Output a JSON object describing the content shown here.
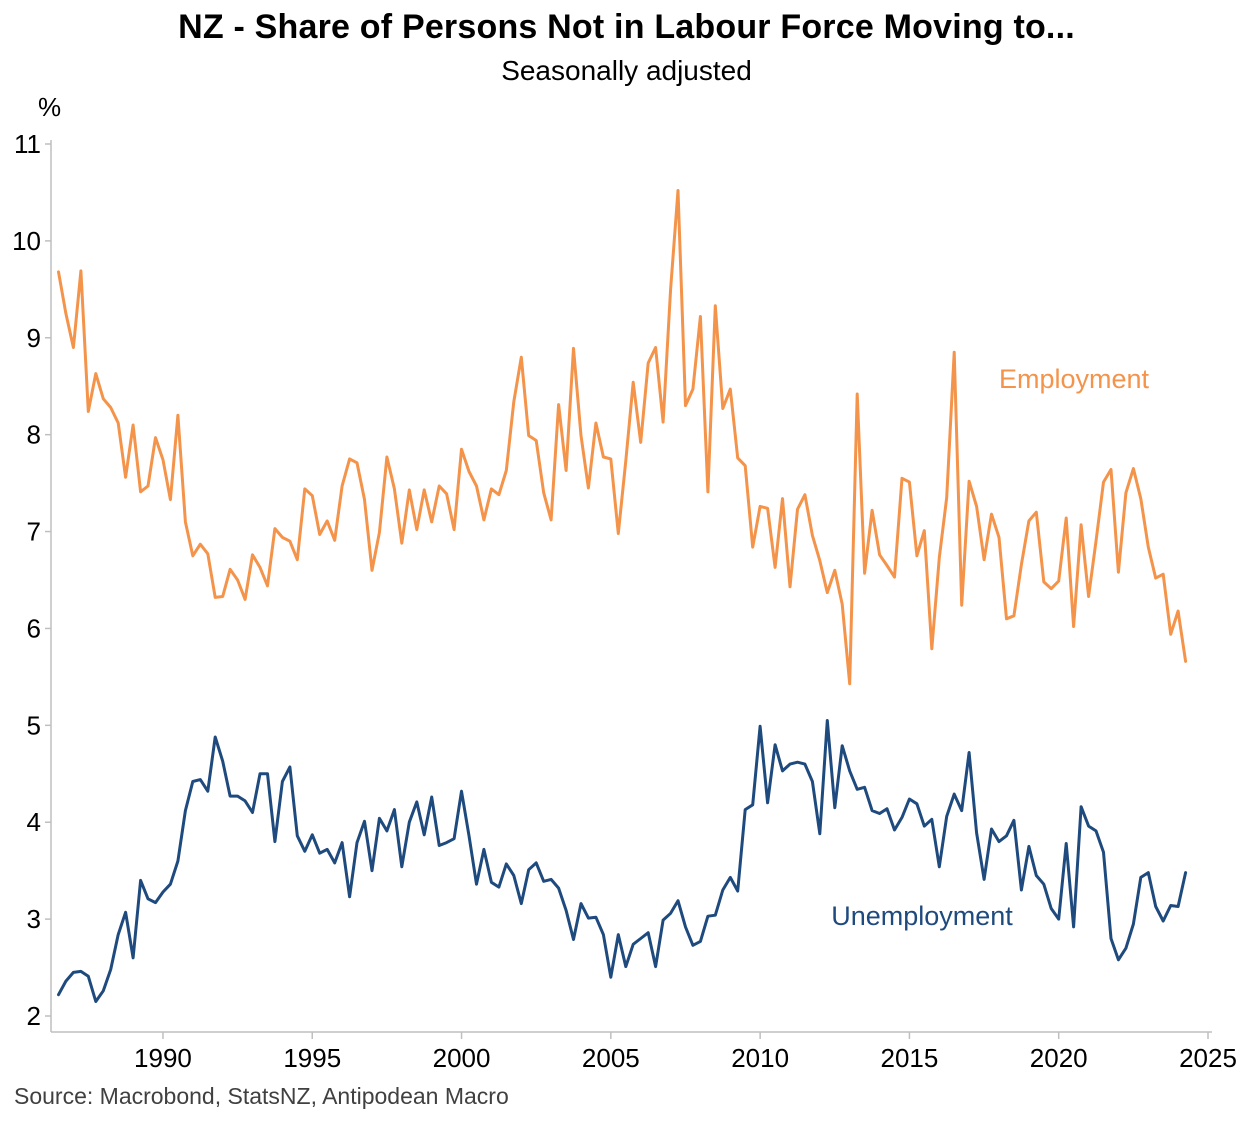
{
  "chart_data": {
    "type": "line",
    "title": "NZ - Share of Persons Not in Labour Force Moving to...",
    "subtitle": "Seasonally adjusted",
    "ylabel": "%",
    "source": "Source: Macrobond, StatsNZ, Antipodean Macro",
    "xlim": [
      1986.25,
      2025.0
    ],
    "ylim": [
      2,
      11
    ],
    "x_ticks": [
      1990,
      1995,
      2000,
      2005,
      2010,
      2015,
      2020,
      2025
    ],
    "y_ticks": [
      2,
      3,
      4,
      5,
      6,
      7,
      8,
      9,
      10,
      11
    ],
    "grid": false,
    "legend": "inline-labels",
    "x_start": 1986.5,
    "x_step": 0.25,
    "series": [
      {
        "name": "Employment",
        "color": "#F4934A",
        "values": [
          9.68,
          9.25,
          8.9,
          9.69,
          8.24,
          8.63,
          8.37,
          8.28,
          8.12,
          7.56,
          8.1,
          7.41,
          7.47,
          7.97,
          7.74,
          7.33,
          8.2,
          7.1,
          6.75,
          6.87,
          6.77,
          6.32,
          6.33,
          6.61,
          6.5,
          6.3,
          6.76,
          6.63,
          6.44,
          7.03,
          6.94,
          6.9,
          6.71,
          7.44,
          7.37,
          6.97,
          7.11,
          6.91,
          7.47,
          7.75,
          7.71,
          7.33,
          6.6,
          6.99,
          7.77,
          7.44,
          6.88,
          7.43,
          7.02,
          7.43,
          7.1,
          7.47,
          7.39,
          7.02,
          7.85,
          7.62,
          7.47,
          7.12,
          7.44,
          7.38,
          7.63,
          8.34,
          8.8,
          7.99,
          7.94,
          7.4,
          7.12,
          8.31,
          7.63,
          8.89,
          7.99,
          7.45,
          8.12,
          7.77,
          7.75,
          6.98,
          7.73,
          8.54,
          7.92,
          8.74,
          8.9,
          8.13,
          9.5,
          10.52,
          8.3,
          8.47,
          9.22,
          7.41,
          9.33,
          8.27,
          8.47,
          7.76,
          7.68,
          6.84,
          7.26,
          7.24,
          6.63,
          7.34,
          6.43,
          7.23,
          7.38,
          6.96,
          6.7,
          6.37,
          6.6,
          6.25,
          5.43,
          8.42,
          6.57,
          7.22,
          6.76,
          6.65,
          6.53,
          7.55,
          7.51,
          6.75,
          7.01,
          5.79,
          6.73,
          7.35,
          8.85,
          6.24,
          7.52,
          7.26,
          6.71,
          7.18,
          6.94,
          6.1,
          6.13,
          6.66,
          7.11,
          7.2,
          6.48,
          6.41,
          6.49,
          7.14,
          6.02,
          7.07,
          6.33,
          6.9,
          7.51,
          7.64,
          6.58,
          7.4,
          7.65,
          7.34,
          6.84,
          6.52,
          6.56,
          5.94,
          6.18,
          5.66
        ]
      },
      {
        "name": "Unemployment",
        "color": "#1F4A7E",
        "values": [
          2.22,
          2.36,
          2.45,
          2.46,
          2.41,
          2.15,
          2.26,
          2.48,
          2.84,
          3.07,
          2.6,
          3.4,
          3.21,
          3.17,
          3.28,
          3.36,
          3.6,
          4.12,
          4.42,
          4.44,
          4.32,
          4.88,
          4.63,
          4.27,
          4.27,
          4.22,
          4.1,
          4.5,
          4.5,
          3.8,
          4.42,
          4.57,
          3.86,
          3.7,
          3.87,
          3.68,
          3.72,
          3.58,
          3.79,
          3.23,
          3.79,
          4.01,
          3.5,
          4.04,
          3.91,
          4.13,
          3.54,
          4.0,
          4.21,
          3.87,
          4.26,
          3.76,
          3.79,
          3.83,
          4.32,
          3.86,
          3.36,
          3.72,
          3.38,
          3.33,
          3.57,
          3.45,
          3.16,
          3.51,
          3.58,
          3.39,
          3.41,
          3.32,
          3.09,
          2.79,
          3.16,
          3.01,
          3.02,
          2.84,
          2.4,
          2.84,
          2.51,
          2.74,
          2.8,
          2.86,
          2.51,
          2.99,
          3.06,
          3.19,
          2.92,
          2.73,
          2.77,
          3.03,
          3.04,
          3.3,
          3.43,
          3.29,
          4.13,
          4.18,
          4.99,
          4.2,
          4.8,
          4.53,
          4.6,
          4.62,
          4.6,
          4.42,
          3.88,
          5.05,
          4.15,
          4.79,
          4.53,
          4.34,
          4.36,
          4.12,
          4.09,
          4.14,
          3.92,
          4.05,
          4.24,
          4.19,
          3.96,
          4.03,
          3.54,
          4.06,
          4.29,
          4.12,
          4.72,
          3.89,
          3.41,
          3.93,
          3.8,
          3.86,
          4.02,
          3.3,
          3.75,
          3.45,
          3.36,
          3.11,
          3.0,
          3.78,
          2.92,
          4.16,
          3.96,
          3.91,
          3.69,
          2.8,
          2.58,
          2.7,
          2.95,
          3.43,
          3.48,
          3.13,
          2.98,
          3.14,
          3.13,
          3.48
        ]
      }
    ]
  }
}
